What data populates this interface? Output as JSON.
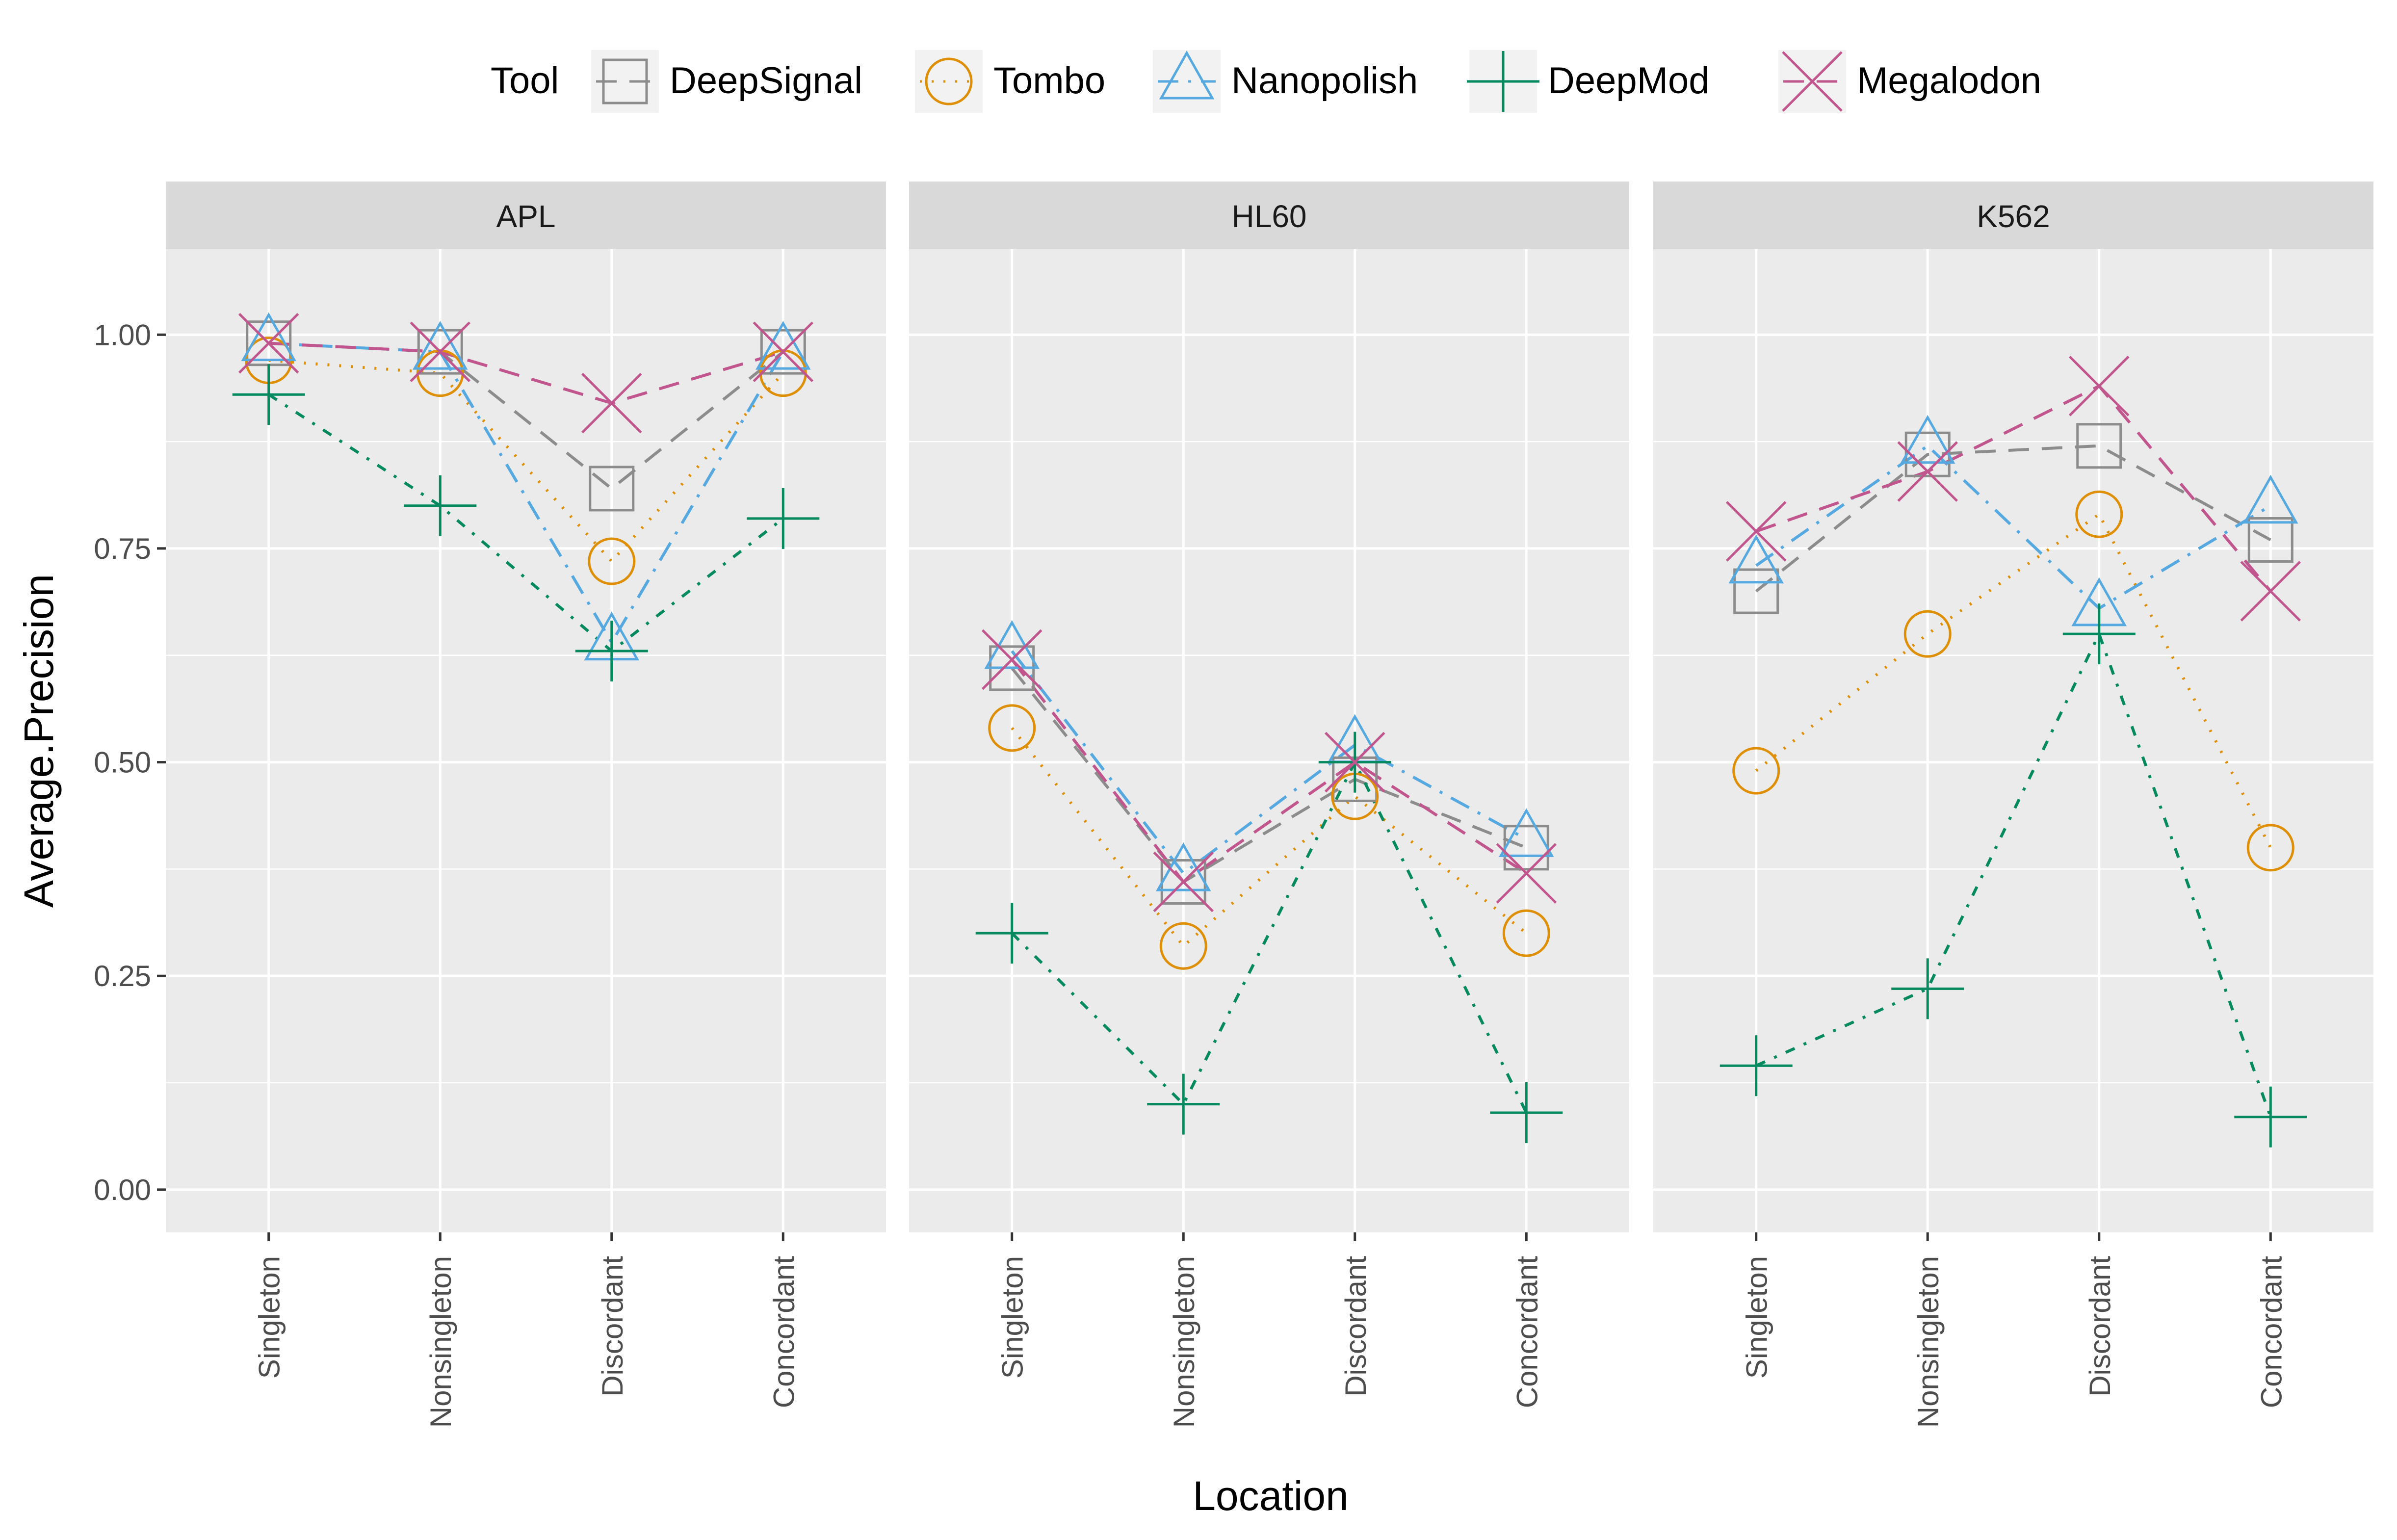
{
  "chart_data": {
    "type": "line",
    "xlabel": "Location",
    "ylabel": "Average.Precision",
    "ylim": [
      -0.05,
      1.1
    ],
    "yticks": [
      "0.00",
      "0.25",
      "0.50",
      "0.75",
      "1.00"
    ],
    "ytick_values": [
      0,
      0.25,
      0.5,
      0.75,
      1.0
    ],
    "categories": [
      "Singleton",
      "Nonsingleton",
      "Discordant",
      "Concordant"
    ],
    "legend": {
      "title": "Tool",
      "position": "top"
    },
    "grid": true,
    "series_styles": [
      {
        "name": "DeepSignal",
        "color": "#8c8c8c",
        "marker": "square",
        "dash": "long-dash"
      },
      {
        "name": "Tombo",
        "color": "#de8f05",
        "marker": "circle",
        "dash": "dotted"
      },
      {
        "name": "Nanopolish",
        "color": "#56a9e0",
        "marker": "triangle",
        "dash": "long-dash-dot"
      },
      {
        "name": "DeepMod",
        "color": "#048a5e",
        "marker": "plus",
        "dash": "dash-dot"
      },
      {
        "name": "Megalodon",
        "color": "#c1558e",
        "marker": "x",
        "dash": "long-dash"
      }
    ],
    "panels": [
      {
        "title": "APL",
        "series": [
          {
            "name": "DeepSignal",
            "values": [
              0.99,
              0.98,
              0.82,
              0.98
            ]
          },
          {
            "name": "Tombo",
            "values": [
              0.97,
              0.955,
              0.735,
              0.955
            ]
          },
          {
            "name": "Nanopolish",
            "values": [
              0.99,
              0.98,
              0.64,
              0.98
            ]
          },
          {
            "name": "DeepMod",
            "values": [
              0.93,
              0.8,
              0.63,
              0.785
            ]
          },
          {
            "name": "Megalodon",
            "values": [
              0.99,
              0.98,
              0.92,
              0.98
            ]
          }
        ]
      },
      {
        "title": "HL60",
        "series": [
          {
            "name": "DeepSignal",
            "values": [
              0.61,
              0.36,
              0.48,
              0.4
            ]
          },
          {
            "name": "Tombo",
            "values": [
              0.54,
              0.285,
              0.46,
              0.3
            ]
          },
          {
            "name": "Nanopolish",
            "values": [
              0.63,
              0.37,
              0.52,
              0.41
            ]
          },
          {
            "name": "DeepMod",
            "values": [
              0.3,
              0.1,
              0.5,
              0.09
            ]
          },
          {
            "name": "Megalodon",
            "values": [
              0.62,
              0.36,
              0.5,
              0.37
            ]
          }
        ]
      },
      {
        "title": "K562",
        "series": [
          {
            "name": "DeepSignal",
            "values": [
              0.7,
              0.86,
              0.87,
              0.76
            ]
          },
          {
            "name": "Tombo",
            "values": [
              0.49,
              0.65,
              0.79,
              0.4
            ]
          },
          {
            "name": "Nanopolish",
            "values": [
              0.73,
              0.87,
              0.68,
              0.8
            ]
          },
          {
            "name": "DeepMod",
            "values": [
              0.145,
              0.235,
              0.65,
              0.085
            ]
          },
          {
            "name": "Megalodon",
            "values": [
              0.77,
              0.84,
              0.94,
              0.7
            ]
          }
        ]
      }
    ]
  }
}
